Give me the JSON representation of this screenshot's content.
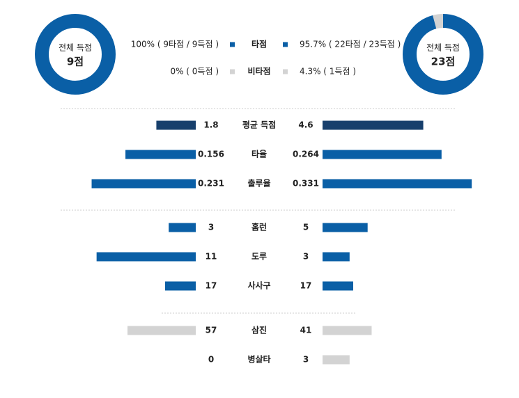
{
  "summary": {
    "left": {
      "caption": "전체 득점",
      "total": "9점",
      "shares": [
        100,
        0
      ]
    },
    "right": {
      "caption": "전체 득점",
      "total": "23점",
      "shares": [
        95.7,
        4.3
      ]
    }
  },
  "legend": [
    {
      "label": "타점",
      "left": "100% ( 9타점 / 9득점 )",
      "right": "95.7% ( 22타점 / 23득점 )",
      "color": "#0a5fa6"
    },
    {
      "label": "비타점",
      "left": "0% ( 0득점 )",
      "right": "4.3% ( 1득점 )",
      "color": "#d3d3d3"
    }
  ],
  "groups": [
    {
      "rows": [
        {
          "label": "평균 득점",
          "left": 1.8,
          "right": 4.6,
          "color": "#173f6c",
          "xlim": [
            0,
            7
          ]
        },
        {
          "label": "타율",
          "left": 0.156,
          "right": 0.264,
          "color": "#0a5fa6",
          "xlim": [
            0,
            0.34
          ]
        },
        {
          "label": "출루율",
          "left": 0.231,
          "right": 0.331,
          "color": "#0a5fa6",
          "xlim": [
            0,
            0.34
          ]
        }
      ]
    },
    {
      "rows": [
        {
          "label": "홈런",
          "left": 3,
          "right": 5,
          "color": "#0a5fa6",
          "xlim": [
            0,
            17
          ]
        },
        {
          "label": "도루",
          "left": 11,
          "right": 3,
          "color": "#0a5fa6",
          "xlim": [
            0,
            17
          ]
        },
        {
          "label": "사사구",
          "left": 17,
          "right": 17,
          "color": "#0a5fa6",
          "xlim": [
            0,
            85
          ]
        }
      ]
    },
    {
      "rows": [
        {
          "label": "삼진",
          "left": 57,
          "right": 41,
          "color": "#d3d3d3",
          "xlim": [
            0,
            128
          ]
        },
        {
          "label": "병살타",
          "left": 0,
          "right": 3,
          "color": "#d3d3d3",
          "xlim": [
            0,
            17
          ]
        }
      ]
    }
  ]
}
